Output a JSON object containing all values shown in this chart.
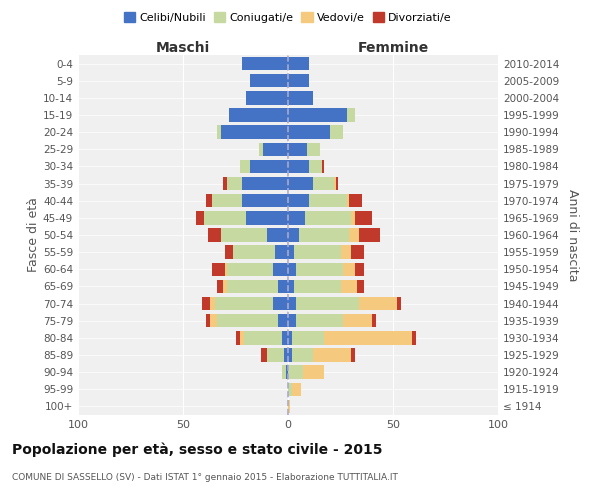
{
  "age_groups": [
    "100+",
    "95-99",
    "90-94",
    "85-89",
    "80-84",
    "75-79",
    "70-74",
    "65-69",
    "60-64",
    "55-59",
    "50-54",
    "45-49",
    "40-44",
    "35-39",
    "30-34",
    "25-29",
    "20-24",
    "15-19",
    "10-14",
    "5-9",
    "0-4"
  ],
  "birth_years": [
    "≤ 1914",
    "1915-1919",
    "1920-1924",
    "1925-1929",
    "1930-1934",
    "1935-1939",
    "1940-1944",
    "1945-1949",
    "1950-1954",
    "1955-1959",
    "1960-1964",
    "1965-1969",
    "1970-1974",
    "1975-1979",
    "1980-1984",
    "1985-1989",
    "1990-1994",
    "1995-1999",
    "2000-2004",
    "2005-2009",
    "2010-2014"
  ],
  "colors": {
    "celibi": "#4472C4",
    "coniugati": "#c5d9a0",
    "vedovi": "#f5c97e",
    "divorziati": "#c0392b"
  },
  "maschi": {
    "celibi": [
      0,
      0,
      1,
      2,
      3,
      5,
      7,
      5,
      7,
      6,
      10,
      20,
      22,
      22,
      18,
      12,
      32,
      28,
      20,
      18,
      22
    ],
    "coniugati": [
      0,
      0,
      2,
      8,
      18,
      29,
      28,
      24,
      22,
      20,
      22,
      20,
      14,
      7,
      5,
      2,
      2,
      0,
      0,
      0,
      0
    ],
    "vedovi": [
      0,
      0,
      0,
      0,
      2,
      3,
      2,
      2,
      1,
      0,
      0,
      0,
      0,
      0,
      0,
      0,
      0,
      0,
      0,
      0,
      0
    ],
    "divorziati": [
      0,
      0,
      0,
      3,
      2,
      2,
      4,
      3,
      6,
      4,
      6,
      4,
      3,
      2,
      0,
      0,
      0,
      0,
      0,
      0,
      0
    ]
  },
  "femmine": {
    "celibi": [
      0,
      0,
      0,
      2,
      2,
      4,
      4,
      3,
      4,
      3,
      5,
      8,
      10,
      12,
      10,
      9,
      20,
      28,
      12,
      10,
      10
    ],
    "coniugati": [
      0,
      2,
      7,
      10,
      15,
      22,
      30,
      22,
      22,
      22,
      24,
      22,
      18,
      10,
      6,
      6,
      6,
      4,
      0,
      0,
      0
    ],
    "vedovi": [
      1,
      4,
      10,
      18,
      42,
      14,
      18,
      8,
      6,
      5,
      5,
      2,
      1,
      1,
      0,
      0,
      0,
      0,
      0,
      0,
      0
    ],
    "divorziati": [
      0,
      0,
      0,
      2,
      2,
      2,
      2,
      3,
      4,
      6,
      10,
      8,
      6,
      1,
      1,
      0,
      0,
      0,
      0,
      0,
      0
    ]
  },
  "xlim": 100,
  "title": "Popolazione per età, sesso e stato civile - 2015",
  "subtitle": "COMUNE DI SASSELLO (SV) - Dati ISTAT 1° gennaio 2015 - Elaborazione TUTTITALIA.IT",
  "ylabel": "Fasce di età",
  "ylabel_right": "Anni di nascita",
  "xlabel_maschi": "Maschi",
  "xlabel_femmine": "Femmine"
}
